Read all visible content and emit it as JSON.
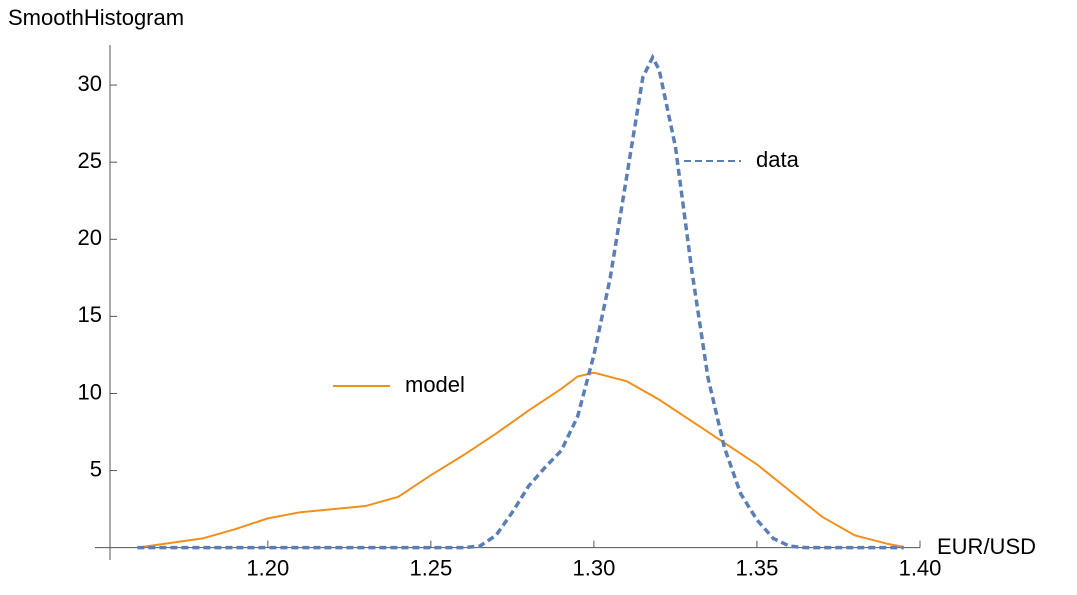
{
  "chart_data": {
    "type": "line",
    "y_label": "SmoothHistogram",
    "x_label": "EUR/USD",
    "xlim": [
      1.147,
      1.4
    ],
    "ylim": [
      -0.8,
      32.6
    ],
    "xticks": [
      {
        "value": 1.2,
        "label": "1.20"
      },
      {
        "value": 1.25,
        "label": "1.25"
      },
      {
        "value": 1.3,
        "label": "1.30"
      },
      {
        "value": 1.35,
        "label": "1.35"
      },
      {
        "value": 1.4,
        "label": "1.40"
      }
    ],
    "yticks": [
      5,
      10,
      15,
      20,
      25,
      30
    ],
    "series": [
      {
        "name": "model",
        "color": "#f0901c",
        "dashed": false,
        "x": [
          1.16,
          1.18,
          1.19,
          1.2,
          1.21,
          1.22,
          1.23,
          1.24,
          1.25,
          1.26,
          1.27,
          1.28,
          1.29,
          1.295,
          1.3,
          1.31,
          1.32,
          1.33,
          1.34,
          1.35,
          1.36,
          1.37,
          1.38,
          1.39,
          1.395
        ],
        "values": [
          0,
          0.6,
          1.2,
          1.9,
          2.3,
          2.5,
          2.7,
          3.3,
          4.7,
          6.0,
          7.4,
          8.9,
          10.3,
          11.1,
          11.35,
          10.8,
          9.6,
          8.2,
          6.8,
          5.4,
          3.7,
          2.0,
          0.8,
          0.25,
          0.05
        ]
      },
      {
        "name": "data",
        "color": "#5b7fb5",
        "dashed": true,
        "x": [
          1.16,
          1.26,
          1.265,
          1.27,
          1.275,
          1.28,
          1.285,
          1.29,
          1.295,
          1.3,
          1.305,
          1.31,
          1.315,
          1.318,
          1.32,
          1.325,
          1.33,
          1.335,
          1.34,
          1.345,
          1.35,
          1.355,
          1.36,
          1.365,
          1.395
        ],
        "values": [
          0,
          0,
          0.1,
          0.8,
          2.3,
          4.0,
          5.2,
          6.3,
          8.5,
          12.5,
          17.5,
          24,
          30.5,
          31.8,
          31,
          26,
          18,
          11,
          6.5,
          3.5,
          1.8,
          0.6,
          0.1,
          0,
          0
        ]
      }
    ]
  }
}
